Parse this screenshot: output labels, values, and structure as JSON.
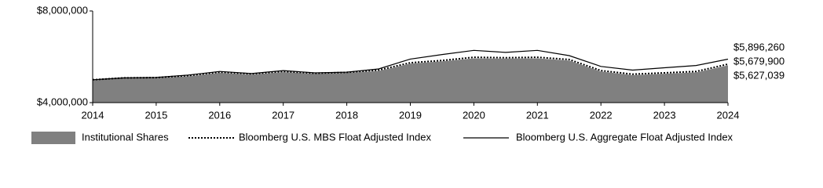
{
  "chart_data": {
    "type": "area",
    "x": [
      2014,
      2014.5,
      2015,
      2015.5,
      2016,
      2016.5,
      2017,
      2017.5,
      2018,
      2018.5,
      2019,
      2019.5,
      2020,
      2020.5,
      2021,
      2021.5,
      2022,
      2022.5,
      2023,
      2023.5,
      2024
    ],
    "xlim": [
      2014,
      2024
    ],
    "xticks": [
      2014,
      2015,
      2016,
      2017,
      2018,
      2019,
      2020,
      2021,
      2022,
      2023,
      2024
    ],
    "ylim": [
      4000000,
      8000000
    ],
    "yticks": [
      {
        "value": 4000000,
        "label": "$4,000,000"
      },
      {
        "value": 8000000,
        "label": "$8,000,000"
      }
    ],
    "grid": false,
    "series": [
      {
        "name": "Institutional Shares",
        "style": "area",
        "color": "#808080",
        "values": [
          4990000,
          5070000,
          5080000,
          5150000,
          5300000,
          5220000,
          5330000,
          5260000,
          5300000,
          5380000,
          5700000,
          5800000,
          5930000,
          5920000,
          5930000,
          5840000,
          5360000,
          5200000,
          5260000,
          5320000,
          5627039
        ],
        "end_label": "$5,627,039"
      },
      {
        "name": "Bloomberg U.S. MBS Float Adjusted Index",
        "style": "dotted",
        "color": "#000000",
        "values": [
          5000000,
          5080000,
          5090000,
          5180000,
          5330000,
          5250000,
          5360000,
          5280000,
          5320000,
          5420000,
          5740000,
          5840000,
          5980000,
          5960000,
          5980000,
          5880000,
          5400000,
          5240000,
          5300000,
          5360000,
          5679900
        ],
        "end_label": "$5,679,900"
      },
      {
        "name": "Bloomberg U.S. Aggregate Float Adjusted Index",
        "style": "solid",
        "color": "#000000",
        "values": [
          5000000,
          5080000,
          5100000,
          5200000,
          5360000,
          5270000,
          5400000,
          5300000,
          5330000,
          5470000,
          5900000,
          6100000,
          6280000,
          6190000,
          6280000,
          6050000,
          5580000,
          5420000,
          5520000,
          5620000,
          5896260
        ],
        "end_label": "$5,896,260"
      }
    ]
  }
}
